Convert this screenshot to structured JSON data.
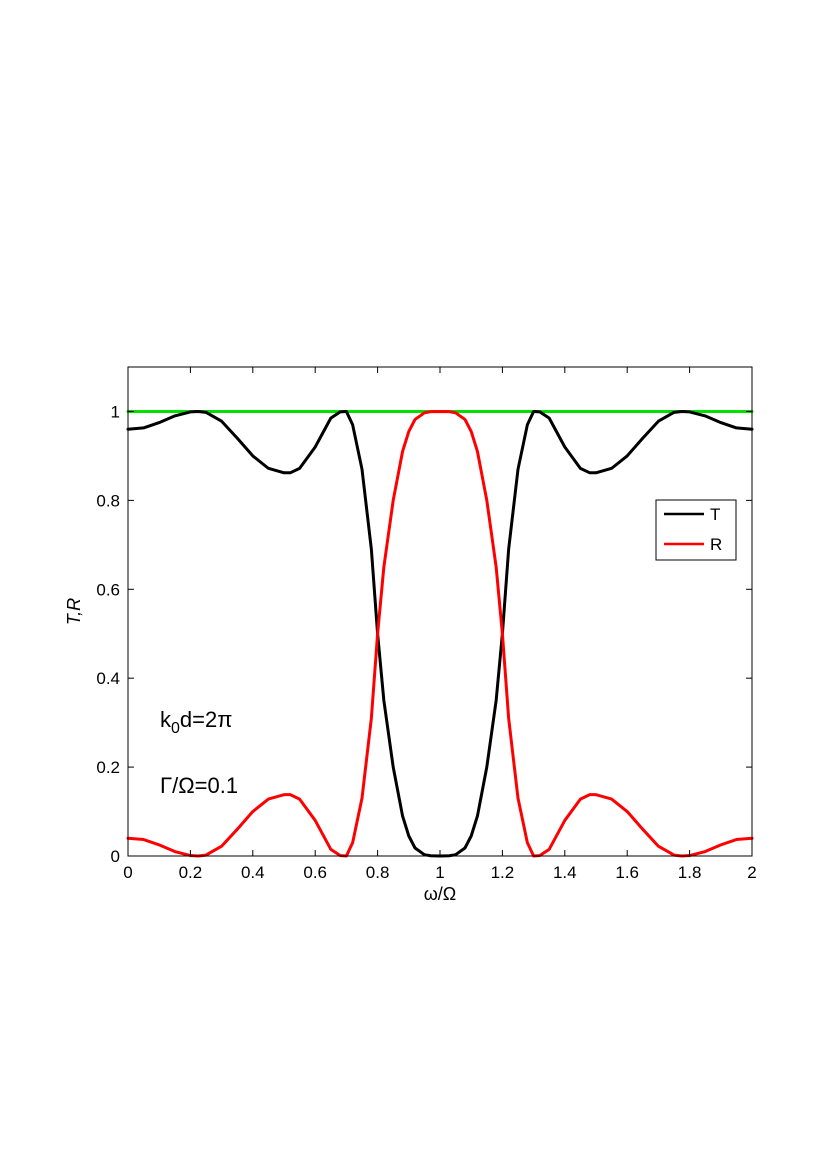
{
  "chart_data": {
    "type": "line",
    "xlabel": "ω/Ω",
    "ylabel": "T,R",
    "xlim": [
      0,
      2
    ],
    "ylim": [
      0,
      1.1
    ],
    "xticks": [
      0,
      0.2,
      0.4,
      0.6,
      0.8,
      1,
      1.2,
      1.4,
      1.6,
      1.8,
      2
    ],
    "xtick_labels": [
      "0",
      "0.2",
      "0.4",
      "0.6",
      "0.8",
      "1",
      "1.2",
      "1.4",
      "1.6",
      "1.8",
      "2"
    ],
    "yticks": [
      0,
      0.2,
      0.4,
      0.6,
      0.8,
      1
    ],
    "ytick_labels": [
      "0",
      "0.2",
      "0.4",
      "0.6",
      "0.8",
      "1"
    ],
    "grid": false,
    "legend_position": "right",
    "legend": [
      {
        "name": "T",
        "color": "#000000"
      },
      {
        "name": "R",
        "color": "#ff0000"
      }
    ],
    "annotations": {
      "k_prefix": "k",
      "k_sub": "0",
      "k_suffix": "d=2π",
      "gamma": "Γ/Ω=0.1"
    },
    "series": [
      {
        "name": "T",
        "color": "#000000",
        "x": [
          0,
          0.05,
          0.1,
          0.15,
          0.2,
          0.225,
          0.25,
          0.3,
          0.35,
          0.4,
          0.45,
          0.5,
          0.52,
          0.55,
          0.6,
          0.65,
          0.68,
          0.7,
          0.72,
          0.75,
          0.78,
          0.8,
          0.82,
          0.85,
          0.88,
          0.9,
          0.92,
          0.95,
          0.97,
          1,
          1.03,
          1.05,
          1.08,
          1.1,
          1.12,
          1.15,
          1.18,
          1.2,
          1.22,
          1.25,
          1.28,
          1.3,
          1.32,
          1.35,
          1.4,
          1.45,
          1.48,
          1.5,
          1.55,
          1.6,
          1.65,
          1.7,
          1.75,
          1.775,
          1.8,
          1.85,
          1.9,
          1.95,
          2
        ],
        "y": [
          0.96,
          0.963,
          0.975,
          0.99,
          0.999,
          1.0,
          0.998,
          0.978,
          0.94,
          0.9,
          0.872,
          0.862,
          0.862,
          0.872,
          0.92,
          0.985,
          0.999,
          1.0,
          0.97,
          0.87,
          0.69,
          0.5,
          0.35,
          0.2,
          0.09,
          0.045,
          0.018,
          0.003,
          0.0005,
          0.0,
          0.0005,
          0.003,
          0.018,
          0.045,
          0.09,
          0.2,
          0.35,
          0.5,
          0.69,
          0.87,
          0.97,
          1.0,
          0.999,
          0.985,
          0.92,
          0.872,
          0.862,
          0.862,
          0.872,
          0.9,
          0.94,
          0.978,
          0.998,
          1.0,
          0.999,
          0.99,
          0.975,
          0.963,
          0.96
        ]
      },
      {
        "name": "R",
        "color": "#ff0000",
        "x": [
          0,
          0.05,
          0.1,
          0.15,
          0.2,
          0.225,
          0.25,
          0.3,
          0.35,
          0.4,
          0.45,
          0.5,
          0.52,
          0.55,
          0.6,
          0.65,
          0.68,
          0.7,
          0.72,
          0.75,
          0.78,
          0.8,
          0.82,
          0.85,
          0.88,
          0.9,
          0.92,
          0.95,
          0.97,
          1,
          1.03,
          1.05,
          1.08,
          1.1,
          1.12,
          1.15,
          1.18,
          1.2,
          1.22,
          1.25,
          1.28,
          1.3,
          1.32,
          1.35,
          1.4,
          1.45,
          1.48,
          1.5,
          1.55,
          1.6,
          1.65,
          1.7,
          1.75,
          1.775,
          1.8,
          1.85,
          1.9,
          1.95,
          2
        ],
        "y": [
          0.04,
          0.037,
          0.025,
          0.01,
          0.001,
          0.0,
          0.002,
          0.022,
          0.06,
          0.1,
          0.128,
          0.138,
          0.138,
          0.128,
          0.08,
          0.015,
          0.001,
          0.0,
          0.03,
          0.13,
          0.31,
          0.5,
          0.65,
          0.8,
          0.91,
          0.955,
          0.982,
          0.997,
          0.9995,
          1.0,
          0.9995,
          0.997,
          0.982,
          0.955,
          0.91,
          0.8,
          0.65,
          0.5,
          0.31,
          0.13,
          0.03,
          0.0,
          0.001,
          0.015,
          0.08,
          0.128,
          0.138,
          0.138,
          0.128,
          0.1,
          0.06,
          0.022,
          0.002,
          0.0,
          0.001,
          0.01,
          0.025,
          0.037,
          0.04
        ]
      },
      {
        "name": "",
        "color": "#00e000",
        "x": [
          0,
          2
        ],
        "y": [
          1,
          1
        ]
      }
    ]
  }
}
